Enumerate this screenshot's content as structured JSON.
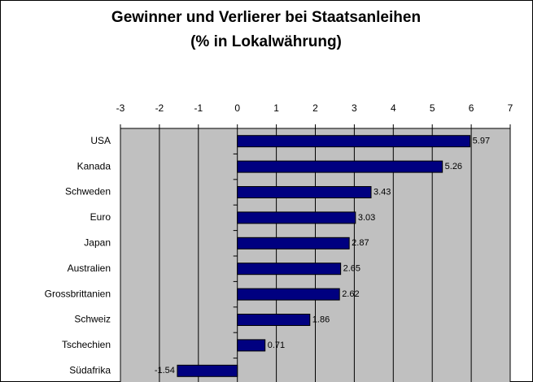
{
  "chart_data": {
    "type": "bar",
    "orientation": "horizontal",
    "title": "Gewinner und Verlierer bei Staatsanleihen",
    "subtitle": "(% in Lokalwährung)",
    "categories": [
      "USA",
      "Kanada",
      "Schweden",
      "Euro",
      "Japan",
      "Australien",
      "Grossbrittanien",
      "Schweiz",
      "Tschechien",
      "Südafrika"
    ],
    "values": [
      5.97,
      5.26,
      3.43,
      3.03,
      2.87,
      2.65,
      2.62,
      1.86,
      0.71,
      -1.54
    ],
    "color": "#000080",
    "xlim": [
      -3,
      7
    ],
    "xticks": [
      -3,
      -2,
      -1,
      0,
      1,
      2,
      3,
      4,
      5,
      6,
      7
    ],
    "grid": true
  }
}
